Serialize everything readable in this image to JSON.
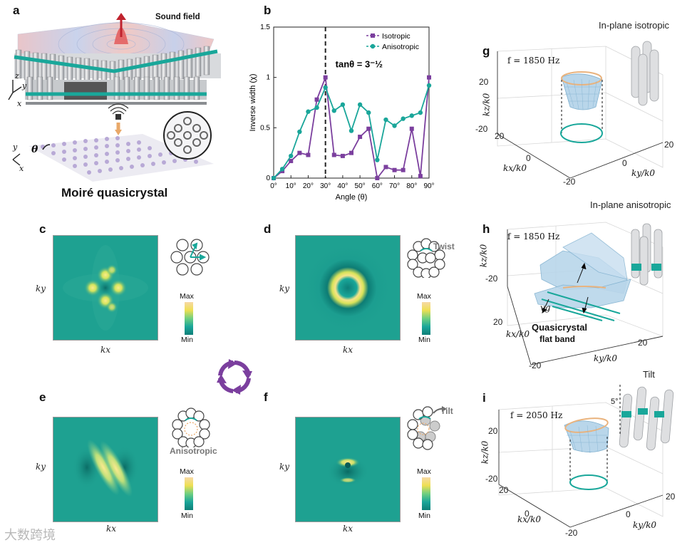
{
  "panels": {
    "a": {
      "label": "a",
      "caption": "Moiré quasicrystal",
      "sound_field": "Sound field",
      "theta": "θ",
      "axis_z": "z",
      "axis_y": "y",
      "axis_x": "x"
    },
    "b": {
      "label": "b"
    },
    "c": {
      "label": "c",
      "xlabel": "kx",
      "ylabel": "ky",
      "cb_max": "Max",
      "cb_min": "Min"
    },
    "d": {
      "label": "d",
      "xlabel": "kx",
      "ylabel": "ky",
      "cb_max": "Max",
      "cb_min": "Min",
      "tag": "Twist"
    },
    "e": {
      "label": "e",
      "xlabel": "kx",
      "ylabel": "ky",
      "cb_max": "Max",
      "cb_min": "Min",
      "tag": "Anisotropic"
    },
    "f": {
      "label": "f",
      "xlabel": "kx",
      "ylabel": "ky",
      "cb_max": "Max",
      "cb_min": "Min",
      "tag": "Tilt"
    },
    "g": {
      "label": "g",
      "title": "In-plane isotropic",
      "freq": "f  =  1850 Hz",
      "kz": "kz/k0",
      "kx": "kx/k0",
      "ky": "ky/k0",
      "t20a": "20",
      "t_20a": "-20",
      "t20b": "20",
      "t0a": "0",
      "t_20b": "-20",
      "t0b": "0",
      "t20c": "20"
    },
    "h": {
      "label": "h",
      "title": "In-plane anisotropic",
      "freq": "f  =  1850 Hz",
      "kz": "kz/k0",
      "kx": "kx/k0",
      "ky": "ky/k0",
      "t_20a": "-20",
      "t20": "20",
      "t_20b": "-20",
      "vg": "vg",
      "qc1": "Quasicrystal",
      "qc2": "flat band"
    },
    "i": {
      "label": "i",
      "title": "Tilt",
      "freq": "f = 2050 Hz",
      "kz": "kz/k0",
      "kx": "kx/k0",
      "ky": "ky/k0",
      "deg": "5°",
      "t20a": "20",
      "t_20a": "-20",
      "t20b": "20",
      "t0a": "0",
      "t20c": "20",
      "t0b": "0",
      "t_20b": "-20"
    }
  },
  "watermark": "大数跨境",
  "chart_data": {
    "type": "line",
    "title": "",
    "xlabel": "Angle (θ)",
    "ylabel": "Inverse width (χ)",
    "xlim": [
      0,
      90
    ],
    "ylim": [
      0,
      1.5
    ],
    "x_ticks": [
      "0°",
      "10°",
      "20°",
      "30°",
      "40°",
      "50°",
      "60°",
      "70°",
      "80°",
      "90°"
    ],
    "y_ticks": [
      "0",
      "0.5",
      "1",
      "1.5"
    ],
    "annotation": "tanθ = 3⁻½",
    "vline_x": 30,
    "series": [
      {
        "name": "Isotropic",
        "color": "#7b3f9e",
        "marker": "square",
        "x": [
          0,
          5,
          10,
          15,
          20,
          25,
          30,
          35,
          40,
          45,
          50,
          55,
          60,
          65,
          70,
          75,
          80,
          85,
          90
        ],
        "y": [
          0,
          0.07,
          0.17,
          0.25,
          0.23,
          0.78,
          1.0,
          0.23,
          0.22,
          0.25,
          0.41,
          0.49,
          0,
          0.11,
          0.08,
          0.08,
          0.49,
          0.02,
          1.0
        ]
      },
      {
        "name": "Anisotropic",
        "color": "#1aa69a",
        "marker": "circle",
        "x": [
          0,
          5,
          10,
          15,
          20,
          25,
          30,
          35,
          40,
          45,
          50,
          55,
          60,
          65,
          70,
          75,
          80,
          85,
          90
        ],
        "y": [
          0,
          0.09,
          0.22,
          0.46,
          0.66,
          0.7,
          0.9,
          0.67,
          0.73,
          0.47,
          0.73,
          0.65,
          0.18,
          0.58,
          0.52,
          0.59,
          0.62,
          0.65,
          0.92
        ]
      }
    ]
  }
}
